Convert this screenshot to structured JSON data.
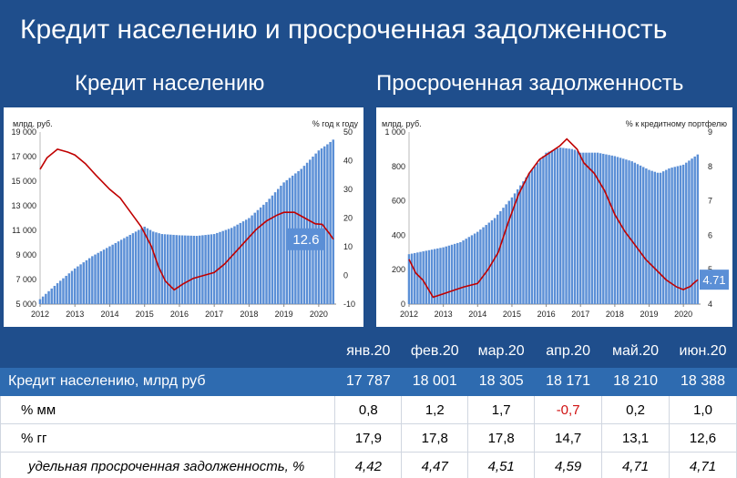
{
  "header": {
    "title": "Кредит населению и просроченная задолженность",
    "left_subtitle": "Кредит населению",
    "right_subtitle": "Просроченная задолженность"
  },
  "colors": {
    "background": "#1f4e8c",
    "bar": "#5b8fd6",
    "line": "#c00000",
    "badge": "#5b8fd6"
  },
  "chart_data": [
    {
      "type": "bar",
      "title": "Кредит населению",
      "ylabel_left": "млрд. руб.",
      "ylabel_right": "% год к году",
      "x_ticks": [
        "2012",
        "2013",
        "2014",
        "2015",
        "2016",
        "2017",
        "2018",
        "2019",
        "2020"
      ],
      "y_left_ticks": [
        "5 000",
        "7 000",
        "9 000",
        "11 000",
        "13 000",
        "15 000",
        "17 000",
        "19 000"
      ],
      "y_right_ticks": [
        "-10",
        "0",
        "10",
        "20",
        "30",
        "40",
        "50"
      ],
      "ylim_left": [
        5000,
        19000
      ],
      "ylim_right": [
        -10,
        50
      ],
      "x_range": [
        2012,
        2020.5
      ],
      "series": [
        {
          "type": "bar",
          "axis": "left",
          "points": [
            [
              2012.0,
              5400
            ],
            [
              2012.5,
              6700
            ],
            [
              2013.0,
              7900
            ],
            [
              2013.5,
              8900
            ],
            [
              2014.0,
              9700
            ],
            [
              2014.5,
              10500
            ],
            [
              2015.0,
              11300
            ],
            [
              2015.25,
              10900
            ],
            [
              2015.5,
              10700
            ],
            [
              2016.0,
              10600
            ],
            [
              2016.5,
              10550
            ],
            [
              2017.0,
              10700
            ],
            [
              2017.5,
              11200
            ],
            [
              2018.0,
              12000
            ],
            [
              2018.5,
              13300
            ],
            [
              2019.0,
              14900
            ],
            [
              2019.5,
              16000
            ],
            [
              2020.0,
              17500
            ],
            [
              2020.25,
              18000
            ],
            [
              2020.42,
              18388
            ]
          ]
        },
        {
          "type": "line",
          "axis": "right",
          "points": [
            [
              2012.0,
              37
            ],
            [
              2012.2,
              41
            ],
            [
              2012.5,
              44
            ],
            [
              2012.8,
              43
            ],
            [
              2013.0,
              42
            ],
            [
              2013.3,
              39
            ],
            [
              2013.6,
              35
            ],
            [
              2014.0,
              30
            ],
            [
              2014.3,
              27
            ],
            [
              2014.6,
              22
            ],
            [
              2014.9,
              17
            ],
            [
              2015.2,
              10
            ],
            [
              2015.4,
              3
            ],
            [
              2015.6,
              -2
            ],
            [
              2015.85,
              -5
            ],
            [
              2016.1,
              -3
            ],
            [
              2016.4,
              -1
            ],
            [
              2016.7,
              0
            ],
            [
              2017.0,
              1
            ],
            [
              2017.3,
              4
            ],
            [
              2017.6,
              8
            ],
            [
              2017.9,
              12
            ],
            [
              2018.2,
              16
            ],
            [
              2018.5,
              19
            ],
            [
              2018.8,
              21
            ],
            [
              2019.0,
              22
            ],
            [
              2019.3,
              22
            ],
            [
              2019.6,
              20
            ],
            [
              2019.9,
              18
            ],
            [
              2020.1,
              17.8
            ],
            [
              2020.3,
              14.7
            ],
            [
              2020.42,
              12.6
            ]
          ]
        }
      ],
      "annotation": "12.6"
    },
    {
      "type": "bar",
      "title": "Просроченная задолженность",
      "ylabel_left": "млрд. руб.",
      "ylabel_right": "% к кредитному портфелю",
      "x_ticks": [
        "2012",
        "2013",
        "2014",
        "2015",
        "2016",
        "2017",
        "2018",
        "2019",
        "2020"
      ],
      "y_left_ticks": [
        "0",
        "200",
        "400",
        "600",
        "800",
        "1 000"
      ],
      "y_right_ticks": [
        "4",
        "5",
        "6",
        "7",
        "8",
        "9"
      ],
      "ylim_left": [
        0,
        1000
      ],
      "ylim_right": [
        4,
        9
      ],
      "x_range": [
        2012,
        2020.5
      ],
      "series": [
        {
          "type": "bar",
          "axis": "left",
          "points": [
            [
              2012.0,
              290
            ],
            [
              2012.5,
              310
            ],
            [
              2013.0,
              330
            ],
            [
              2013.5,
              360
            ],
            [
              2014.0,
              420
            ],
            [
              2014.5,
              500
            ],
            [
              2015.0,
              620
            ],
            [
              2015.5,
              760
            ],
            [
              2016.0,
              880
            ],
            [
              2016.4,
              910
            ],
            [
              2016.8,
              900
            ],
            [
              2017.0,
              880
            ],
            [
              2017.5,
              880
            ],
            [
              2018.0,
              860
            ],
            [
              2018.5,
              830
            ],
            [
              2019.0,
              780
            ],
            [
              2019.3,
              760
            ],
            [
              2019.6,
              790
            ],
            [
              2020.0,
              810
            ],
            [
              2020.42,
              870
            ]
          ]
        },
        {
          "type": "line",
          "axis": "right",
          "points": [
            [
              2012.0,
              5.3
            ],
            [
              2012.2,
              4.9
            ],
            [
              2012.4,
              4.7
            ],
            [
              2012.7,
              4.2
            ],
            [
              2013.0,
              4.3
            ],
            [
              2013.3,
              4.4
            ],
            [
              2013.6,
              4.5
            ],
            [
              2014.0,
              4.6
            ],
            [
              2014.3,
              5.0
            ],
            [
              2014.6,
              5.5
            ],
            [
              2014.9,
              6.4
            ],
            [
              2015.2,
              7.2
            ],
            [
              2015.5,
              7.8
            ],
            [
              2015.8,
              8.2
            ],
            [
              2016.1,
              8.4
            ],
            [
              2016.4,
              8.6
            ],
            [
              2016.6,
              8.8
            ],
            [
              2016.9,
              8.5
            ],
            [
              2017.1,
              8.1
            ],
            [
              2017.4,
              7.8
            ],
            [
              2017.7,
              7.3
            ],
            [
              2018.0,
              6.6
            ],
            [
              2018.3,
              6.1
            ],
            [
              2018.6,
              5.7
            ],
            [
              2018.9,
              5.3
            ],
            [
              2019.2,
              5.0
            ],
            [
              2019.5,
              4.7
            ],
            [
              2019.8,
              4.5
            ],
            [
              2020.0,
              4.42
            ],
            [
              2020.1,
              4.47
            ],
            [
              2020.2,
              4.51
            ],
            [
              2020.28,
              4.59
            ],
            [
              2020.42,
              4.71
            ]
          ]
        }
      ],
      "annotation": "4.71"
    }
  ],
  "table": {
    "columns": [
      "янв.20",
      "фев.20",
      "мар.20",
      "апр.20",
      "май.20",
      "июн.20"
    ],
    "rows": [
      {
        "label": "Кредит населению, млрд руб",
        "values": [
          "17 787",
          "18 001",
          "18 305",
          "18 171",
          "18 210",
          "18 388"
        ]
      },
      {
        "label": "% мм",
        "values": [
          "0,8",
          "1,2",
          "1,7",
          "-0,7",
          "0,2",
          "1,0"
        ]
      },
      {
        "label": "% гг",
        "values": [
          "17,9",
          "17,8",
          "17,8",
          "14,7",
          "13,1",
          "12,6"
        ]
      },
      {
        "label": "удельная просроченная задолженность, %",
        "values": [
          "4,42",
          "4,47",
          "4,51",
          "4,59",
          "4,71",
          "4,71"
        ]
      }
    ]
  }
}
